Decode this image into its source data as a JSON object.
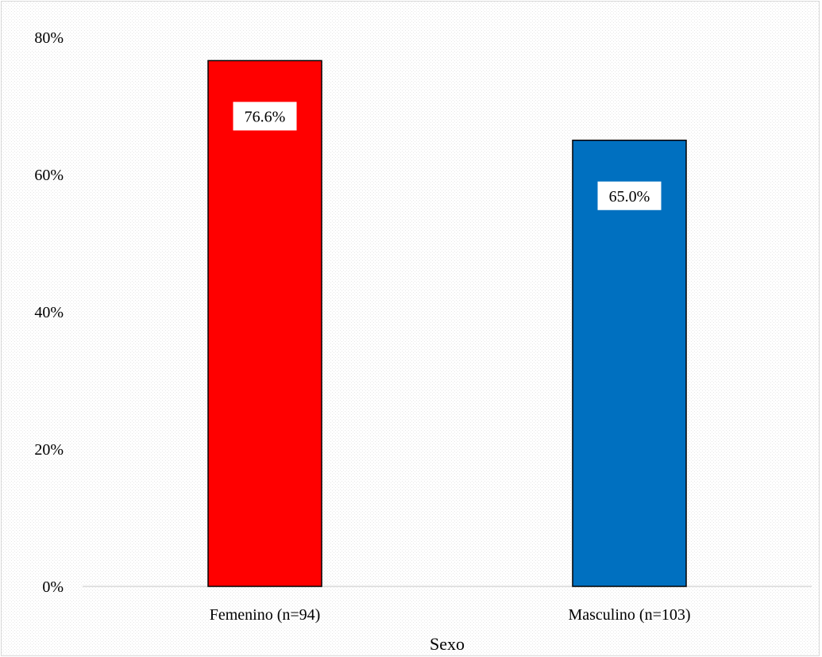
{
  "chart_data": {
    "type": "bar",
    "title": "",
    "xlabel": "Sexo",
    "ylabel": "",
    "categories": [
      "Femenino (n=94)",
      "Masculino (n=103)"
    ],
    "values": [
      76.6,
      65.0
    ],
    "data_labels": [
      "76.6%",
      "65.0%"
    ],
    "bar_colors": [
      "#ff0000",
      "#0070c0"
    ],
    "ylim": [
      0,
      80
    ],
    "yticks": [
      0,
      20,
      40,
      60,
      80
    ],
    "ytick_labels": [
      "0%",
      "20%",
      "40%",
      "60%",
      "80%"
    ],
    "grid": false,
    "legend": "none",
    "background": "dotted light gray"
  }
}
